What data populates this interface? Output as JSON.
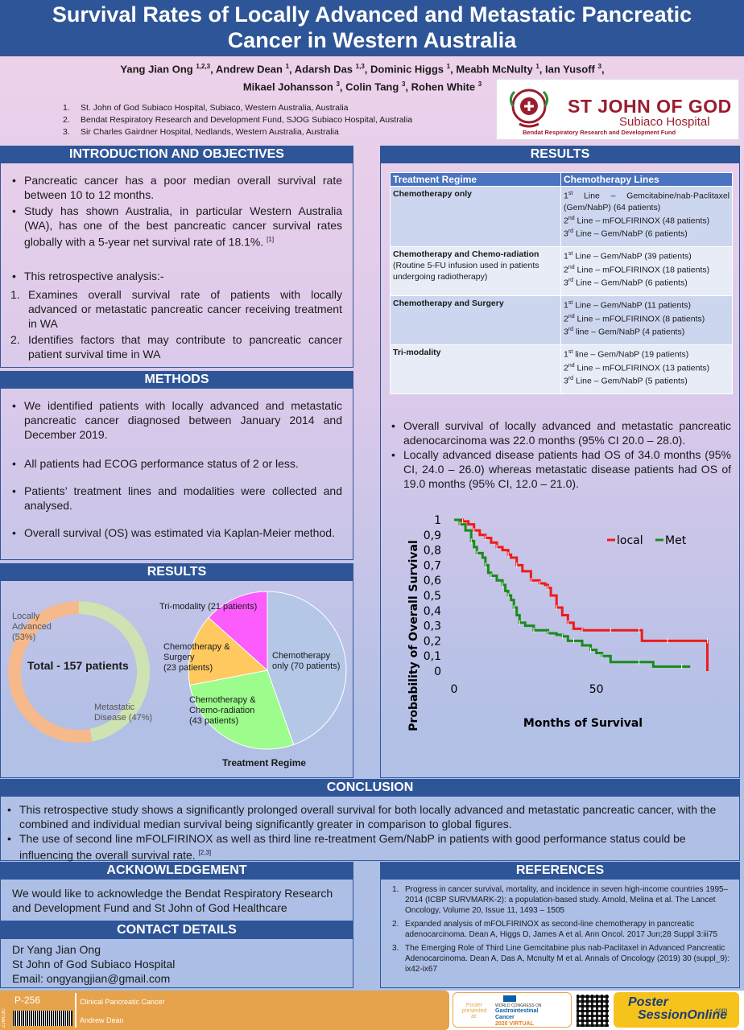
{
  "title": {
    "line1": "Survival Rates of Locally Advanced and Metastatic Pancreatic",
    "line2": "Cancer in Western Australia"
  },
  "authors": {
    "a1": "Yang Jian Ong",
    "a1s": "1,2,3",
    "a2": "Andrew Dean",
    "a2s": "1",
    "a3": "Adarsh Das",
    "a3s": "1,3",
    "a4": "Dominic Higgs",
    "a4s": "1",
    "a5": "Meabh McNulty",
    "a5s": "1",
    "a6": "Ian Yusoff",
    "a6s": "3",
    "a7": "Mikael Johansson",
    "a7s": "3",
    "a8": "Colin Tang",
    "a8s": "3",
    "a9": "Rohen White",
    "a9s": "3"
  },
  "affiliations": [
    {
      "num": "1.",
      "text": "St. John of God Subiaco Hospital, Subiaco, Western Australia, Australia"
    },
    {
      "num": "2.",
      "text": "Bendat Respiratory Research and Development Fund, SJOG Subiaco Hospital, Australia"
    },
    {
      "num": "3.",
      "text": "Sir Charles Gairdner Hospital, Nedlands, Western Australia, Australia"
    }
  ],
  "logo": {
    "name": "ST JOHN OF GOD",
    "sub": "Subiaco Hospital",
    "tag": "Bendat Respiratory Research and Development Fund",
    "color": "#9b1c2e"
  },
  "intro": {
    "heading": "INTRODUCTION AND OBJECTIVES",
    "b1": "Pancreatic cancer has a poor median overall survival rate between 10 to 12 months.",
    "b2": "Study has shown Australia, in particular Western Australia (WA), has one of the best pancreatic cancer survival rates globally with a 5-year net survival rate of 18.1%.",
    "b2ref": "[1]",
    "b3": "This retrospective analysis:-",
    "n1": "Examines overall survival rate of patients with locally advanced or metastatic pancreatic cancer receiving treatment in WA",
    "n2": "Identifies factors that may contribute to pancreatic cancer patient survival time in WA",
    "n1num": "1.",
    "n2num": "2."
  },
  "methods": {
    "heading": "METHODS",
    "b1": "We identified patients with locally advanced and metastatic pancreatic cancer diagnosed between January 2014 and December 2019.",
    "b2": "All patients had ECOG performance status of 2 or less.",
    "b3": "Patients’ treatment lines and modalities were collected and analysed.",
    "b4": "Overall survival (OS) was estimated via Kaplan-Meier method."
  },
  "results_left": {
    "heading": "RESULTS",
    "donut_center": "Total - 157 patients",
    "donut_label1a": "Locally",
    "donut_label1b": "Advanced",
    "donut_label1c": "(53%)",
    "donut_label2a": "Metastatic",
    "donut_label2b": "Disease (47%)",
    "pie_title": "Treatment Regime",
    "pie_l1a": "Chemotherapy",
    "pie_l1b": "only (70 patients)",
    "pie_l2a": "Chemotherapy &",
    "pie_l2b": "Chemo-radiation",
    "pie_l2c": "(43 patients)",
    "pie_l3a": "Chemotherapy &",
    "pie_l3b": "Surgery",
    "pie_l3c": "(23 patients)",
    "pie_l4": "Tri-modality (21 patients)"
  },
  "chart_data": [
    {
      "type": "pie",
      "categories": [
        "Locally Advanced",
        "Metastatic Disease"
      ],
      "values": [
        53,
        47
      ],
      "unit": "%",
      "colors": [
        "#f6b98c",
        "#cfe3b2"
      ]
    },
    {
      "type": "pie",
      "title": "Treatment Regime",
      "categories": [
        "Chemotherapy only",
        "Chemotherapy & Chemo-radiation",
        "Chemotherapy & Surgery",
        "Tri-modality"
      ],
      "values": [
        70,
        43,
        23,
        21
      ],
      "colors": [
        "#b4c7e7",
        "#9cfc8c",
        "#ffc95f",
        "#fc5cfc"
      ]
    },
    {
      "type": "line",
      "xlabel": "Months of Survival",
      "ylabel": "Probability of Overall Survival",
      "xticks": [
        "0",
        "50"
      ],
      "yticks": [
        "0",
        "0,1",
        "0,2",
        "0,3",
        "0,4",
        "0,5",
        "0,6",
        "0,7",
        "0,8",
        "0,9",
        "1"
      ],
      "xlim": [
        0,
        90
      ],
      "ylim": [
        0,
        1
      ],
      "legend": "top-right",
      "series": [
        {
          "name": "local",
          "color": "#ee1b1b",
          "x": [
            0,
            3,
            5,
            7,
            9,
            11,
            13,
            15,
            17,
            19,
            20,
            22,
            24,
            27,
            28,
            30,
            32,
            33,
            34,
            36,
            38,
            40,
            42,
            45,
            50,
            55,
            60,
            65,
            66,
            75,
            85,
            89,
            89
          ],
          "y": [
            1.0,
            0.99,
            0.97,
            0.93,
            0.9,
            0.88,
            0.85,
            0.82,
            0.8,
            0.77,
            0.75,
            0.7,
            0.66,
            0.6,
            0.6,
            0.58,
            0.57,
            0.55,
            0.5,
            0.42,
            0.37,
            0.32,
            0.28,
            0.27,
            0.27,
            0.27,
            0.27,
            0.27,
            0.2,
            0.2,
            0.2,
            0.2,
            0.0
          ]
        },
        {
          "name": "Met",
          "color": "#1a8a1a",
          "x": [
            0,
            2,
            4,
            6,
            7,
            8,
            10,
            11,
            12,
            13,
            15,
            17,
            18,
            19,
            20,
            21,
            22,
            23,
            25,
            28,
            30,
            33,
            36,
            38,
            40,
            42,
            45,
            48,
            50,
            52,
            55,
            65,
            70,
            80,
            83
          ],
          "y": [
            1.0,
            0.97,
            0.93,
            0.86,
            0.82,
            0.78,
            0.75,
            0.7,
            0.65,
            0.63,
            0.6,
            0.57,
            0.53,
            0.5,
            0.47,
            0.42,
            0.37,
            0.32,
            0.3,
            0.27,
            0.27,
            0.25,
            0.24,
            0.23,
            0.2,
            0.2,
            0.17,
            0.14,
            0.12,
            0.1,
            0.06,
            0.06,
            0.03,
            0.03,
            0.03
          ]
        }
      ]
    }
  ],
  "results_right": {
    "heading": "RESULTS",
    "th1": "Treatment Regime",
    "th2": "Chemotherapy Lines",
    "r1c1": "Chemotherapy only",
    "r1l1a": "1",
    "r1l1s": "st",
    "r1l1b": " Line – Gemcitabine/nab-Paclitaxel (Gem/NabP) (64 patients)",
    "r1l2a": "2",
    "r1l2s": "nd",
    "r1l2b": " Line – mFOLFIRINOX (48 patients)",
    "r1l3a": "3",
    "r1l3s": "rd",
    "r1l3b": " Line – Gem/NabP (6 patients)",
    "r2c1a": "Chemotherapy and Chemo-radiation",
    "r2c1b": "(Routine 5-FU infusion used in patients undergoing radiotherapy)",
    "r2l1a": "1",
    "r2l1s": "st",
    "r2l1b": " Line – Gem/NabP (39 patients)",
    "r2l2a": "2",
    "r2l2s": "nd",
    "r2l2b": " Line – mFOLFIRINOX (18 patients)",
    "r2l3a": "3",
    "r2l3s": "rd",
    "r2l3b": " Line – Gem/NabP (6 patients)",
    "r3c1": "Chemotherapy and Surgery",
    "r3l1a": "1",
    "r3l1s": "st",
    "r3l1b": " Line – Gem/NabP (11 patients)",
    "r3l2a": "2",
    "r3l2s": "nd",
    "r3l2b": " Line – mFOLFIRINOX (8 patients)",
    "r3l3a": "3",
    "r3l3s": "rd",
    "r3l3b": " line – Gem/NabP (4 patients)",
    "r4c1": "Tri-modality",
    "r4l1a": "1",
    "r4l1s": "st",
    "r4l1b": " line – Gem/NabP (19 patients)",
    "r4l2a": "2",
    "r4l2s": "nd",
    "r4l2b": " Line – mFOLFIRINOX (13 patients)",
    "r4l3a": "3",
    "r4l3s": "rd",
    "r4l3b": " Line – Gem/NabP (5 patients)",
    "b1": "Overall survival of locally advanced and metastatic pancreatic adenocarcinoma was 22.0 months (95% CI 20.0 – 28.0).",
    "b2": "Locally advanced disease patients had OS of 34.0 months (95% CI, 24.0 – 26.0) whereas metastatic disease patients had OS of 19.0 months (95% CI, 12.0 – 21.0)."
  },
  "conclusion": {
    "heading": "CONCLUSION",
    "b1": "This retrospective study shows a significantly prolonged overall survival for both locally advanced and metastatic pancreatic cancer, with the combined and individual median survival being  significantly greater in comparison to global figures.",
    "b2": "The use of second line mFOLFIRINOX as well as third line re-treatment Gem/NabP in patients with good performance status could be influencing the overall survival rate.",
    "b2ref": "[2,3]"
  },
  "ack": {
    "heading": "ACKNOWLEDGEMENT",
    "text": "We would like to acknowledge the Bendat Respiratory Research and Development Fund and St John of God Healthcare"
  },
  "contact": {
    "heading": "CONTACT DETAILS",
    "l1": "Dr Yang Jian Ong",
    "l2": "St John of God Subiaco Hospital",
    "l3": "Email: ongyangjian@gmail.com"
  },
  "references": {
    "heading": "REFERENCES",
    "items": [
      {
        "num": "1.",
        "text": "Progress in cancer survival, mortality, and incidence in seven high-income countries 1995–2014 (ICBP SURVMARK-2): a population-based study. Arnold, Melina et al. The Lancet Oncology, Volume 20, Issue 11, 1493 – 1505"
      },
      {
        "num": "2.",
        "text": "Expanded analysis of mFOLFIRINOX as second-line chemotherapy in pancreatic adenocarcinoma. Dean A, Higgs D, James A et al. Ann Oncol. 2017 Jun;28 Suppl 3:iii75"
      },
      {
        "num": "3.",
        "text": "The Emerging Role of Third Line Gemcitabine plus nab-Paclitaxel in Advanced Pancreatic Adenocarcinoma. Dean A, Das A, Mcnulty M et al. Annals of Oncology (2019) 30 (suppl_9): ix42-ix67"
      }
    ]
  },
  "footer": {
    "code": "P-256",
    "side": "ZJMC3C",
    "topic": "Clinical Pancreatic Cancer",
    "author": "Andrew Dean",
    "presented": "Poster",
    "presented2": "presented at:",
    "congress1": "WORLD CONGRESS ON",
    "congress2": "Gastrointestinal",
    "congress3": "Cancer",
    "congress4": "2020 VIRTUAL",
    "brand1": "Poster",
    "brand2": "SessionOnline",
    "brand3": ".com"
  }
}
